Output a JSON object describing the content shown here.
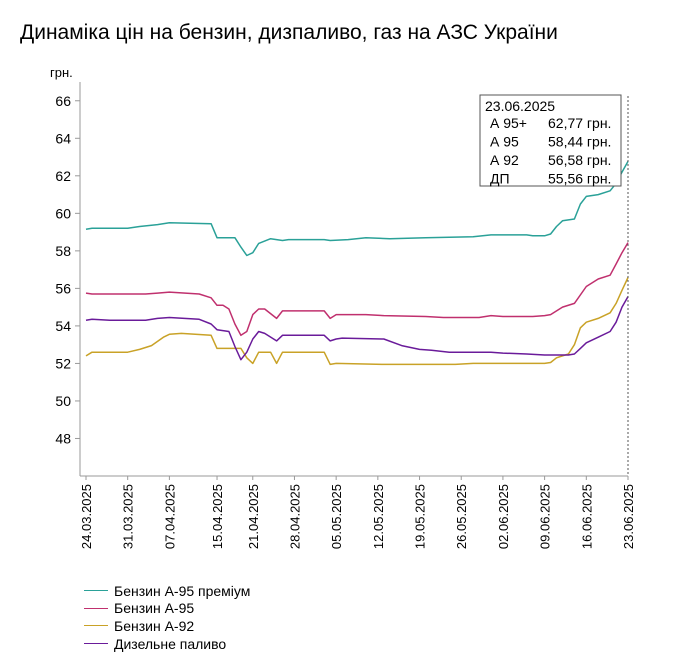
{
  "title": "Динаміка цін на бензин, дизпаливо, газ на АЗС України",
  "chart_data": {
    "type": "line",
    "title": "Динаміка цін на бензин, дизпаливо, газ на АЗС України",
    "ylabel": "грн.",
    "xlabel": "",
    "ylim": [
      46,
      67
    ],
    "yticks": [
      48,
      50,
      52,
      54,
      56,
      58,
      60,
      62,
      64,
      66
    ],
    "x_start": "24.03.2025",
    "x_end": "23.06.2025",
    "xticks": [
      "24.03.2025",
      "31.03.2025",
      "07.04.2025",
      "15.04.2025",
      "21.04.2025",
      "28.04.2025",
      "05.05.2025",
      "12.05.2025",
      "19.05.2025",
      "26.05.2025",
      "02.06.2025",
      "09.06.2025",
      "16.06.2025",
      "23.06.2025"
    ],
    "grid": false,
    "legend_position": "bottom-left",
    "series": [
      {
        "name": "Бензин А-95 преміум",
        "color": "#2aa198",
        "points": [
          [
            "24.03.2025",
            59.15
          ],
          [
            "25.03.2025",
            59.2
          ],
          [
            "31.03.2025",
            59.2
          ],
          [
            "02.04.2025",
            59.3
          ],
          [
            "05.04.2025",
            59.4
          ],
          [
            "07.04.2025",
            59.5
          ],
          [
            "14.04.2025",
            59.45
          ],
          [
            "15.04.2025",
            58.7
          ],
          [
            "18.04.2025",
            58.7
          ],
          [
            "19.04.2025",
            58.2
          ],
          [
            "20.04.2025",
            57.75
          ],
          [
            "21.04.2025",
            57.9
          ],
          [
            "22.04.2025",
            58.4
          ],
          [
            "24.04.2025",
            58.65
          ],
          [
            "26.04.2025",
            58.55
          ],
          [
            "27.04.2025",
            58.6
          ],
          [
            "03.05.2025",
            58.6
          ],
          [
            "04.05.2025",
            58.55
          ],
          [
            "07.05.2025",
            58.6
          ],
          [
            "10.05.2025",
            58.7
          ],
          [
            "14.05.2025",
            58.65
          ],
          [
            "20.05.2025",
            58.7
          ],
          [
            "28.05.2025",
            58.75
          ],
          [
            "31.05.2025",
            58.85
          ],
          [
            "06.06.2025",
            58.85
          ],
          [
            "07.06.2025",
            58.8
          ],
          [
            "09.06.2025",
            58.8
          ],
          [
            "10.06.2025",
            58.9
          ],
          [
            "11.06.2025",
            59.3
          ],
          [
            "12.06.2025",
            59.6
          ],
          [
            "14.06.2025",
            59.7
          ],
          [
            "15.06.2025",
            60.5
          ],
          [
            "16.06.2025",
            60.9
          ],
          [
            "18.06.2025",
            61.0
          ],
          [
            "20.06.2025",
            61.2
          ],
          [
            "21.06.2025",
            61.6
          ],
          [
            "22.06.2025",
            62.2
          ],
          [
            "23.06.2025",
            62.77
          ]
        ]
      },
      {
        "name": "Бензин А-95",
        "color": "#c0306e",
        "points": [
          [
            "24.03.2025",
            55.75
          ],
          [
            "25.03.2025",
            55.7
          ],
          [
            "31.03.2025",
            55.7
          ],
          [
            "03.04.2025",
            55.7
          ],
          [
            "05.04.2025",
            55.75
          ],
          [
            "07.04.2025",
            55.8
          ],
          [
            "12.04.2025",
            55.7
          ],
          [
            "14.04.2025",
            55.5
          ],
          [
            "15.04.2025",
            55.1
          ],
          [
            "16.04.2025",
            55.1
          ],
          [
            "17.04.2025",
            54.9
          ],
          [
            "18.04.2025",
            54.1
          ],
          [
            "19.04.2025",
            53.5
          ],
          [
            "20.04.2025",
            53.7
          ],
          [
            "21.04.2025",
            54.6
          ],
          [
            "22.04.2025",
            54.9
          ],
          [
            "23.04.2025",
            54.9
          ],
          [
            "25.04.2025",
            54.4
          ],
          [
            "26.04.2025",
            54.8
          ],
          [
            "27.04.2025",
            54.8
          ],
          [
            "03.05.2025",
            54.8
          ],
          [
            "04.05.2025",
            54.4
          ],
          [
            "05.05.2025",
            54.6
          ],
          [
            "06.05.2025",
            54.6
          ],
          [
            "10.05.2025",
            54.6
          ],
          [
            "13.05.2025",
            54.55
          ],
          [
            "20.05.2025",
            54.5
          ],
          [
            "23.05.2025",
            54.45
          ],
          [
            "29.05.2025",
            54.45
          ],
          [
            "31.05.2025",
            54.55
          ],
          [
            "02.06.2025",
            54.5
          ],
          [
            "07.06.2025",
            54.5
          ],
          [
            "09.06.2025",
            54.55
          ],
          [
            "10.06.2025",
            54.6
          ],
          [
            "12.06.2025",
            55.0
          ],
          [
            "14.06.2025",
            55.2
          ],
          [
            "16.06.2025",
            56.1
          ],
          [
            "18.06.2025",
            56.5
          ],
          [
            "20.06.2025",
            56.7
          ],
          [
            "21.06.2025",
            57.3
          ],
          [
            "22.06.2025",
            57.9
          ],
          [
            "23.06.2025",
            58.44
          ]
        ]
      },
      {
        "name": "Бензин А-92",
        "color": "#c9a227",
        "points": [
          [
            "24.03.2025",
            52.4
          ],
          [
            "25.03.2025",
            52.6
          ],
          [
            "26.03.2025",
            52.6
          ],
          [
            "31.03.2025",
            52.6
          ],
          [
            "02.04.2025",
            52.75
          ],
          [
            "04.04.2025",
            52.95
          ],
          [
            "06.04.2025",
            53.4
          ],
          [
            "07.04.2025",
            53.55
          ],
          [
            "09.04.2025",
            53.6
          ],
          [
            "14.04.2025",
            53.5
          ],
          [
            "15.04.2025",
            52.8
          ],
          [
            "19.04.2025",
            52.8
          ],
          [
            "20.04.2025",
            52.3
          ],
          [
            "21.04.2025",
            52.0
          ],
          [
            "22.04.2025",
            52.6
          ],
          [
            "24.04.2025",
            52.6
          ],
          [
            "25.04.2025",
            52.0
          ],
          [
            "26.04.2025",
            52.6
          ],
          [
            "03.05.2025",
            52.6
          ],
          [
            "04.05.2025",
            51.95
          ],
          [
            "05.05.2025",
            52.0
          ],
          [
            "13.05.2025",
            51.95
          ],
          [
            "20.05.2025",
            51.95
          ],
          [
            "25.05.2025",
            51.95
          ],
          [
            "28.05.2025",
            52.0
          ],
          [
            "02.06.2025",
            52.0
          ],
          [
            "07.06.2025",
            52.0
          ],
          [
            "09.06.2025",
            52.0
          ],
          [
            "10.06.2025",
            52.05
          ],
          [
            "11.06.2025",
            52.3
          ],
          [
            "13.06.2025",
            52.5
          ],
          [
            "14.06.2025",
            53.0
          ],
          [
            "15.06.2025",
            53.9
          ],
          [
            "16.06.2025",
            54.2
          ],
          [
            "18.06.2025",
            54.4
          ],
          [
            "20.06.2025",
            54.7
          ],
          [
            "21.06.2025",
            55.2
          ],
          [
            "22.06.2025",
            55.9
          ],
          [
            "23.06.2025",
            56.58
          ]
        ]
      },
      {
        "name": "Дизельне паливо",
        "color": "#6a1b9a",
        "points": [
          [
            "24.03.2025",
            54.3
          ],
          [
            "25.03.2025",
            54.35
          ],
          [
            "28.03.2025",
            54.3
          ],
          [
            "31.03.2025",
            54.3
          ],
          [
            "03.04.2025",
            54.3
          ],
          [
            "05.04.2025",
            54.4
          ],
          [
            "07.04.2025",
            54.45
          ],
          [
            "12.04.2025",
            54.35
          ],
          [
            "14.04.2025",
            54.1
          ],
          [
            "15.04.2025",
            53.8
          ],
          [
            "17.04.2025",
            53.7
          ],
          [
            "18.04.2025",
            52.9
          ],
          [
            "19.04.2025",
            52.2
          ],
          [
            "20.04.2025",
            52.6
          ],
          [
            "21.04.2025",
            53.3
          ],
          [
            "22.04.2025",
            53.7
          ],
          [
            "23.04.2025",
            53.6
          ],
          [
            "25.04.2025",
            53.2
          ],
          [
            "26.04.2025",
            53.5
          ],
          [
            "03.05.2025",
            53.5
          ],
          [
            "04.05.2025",
            53.2
          ],
          [
            "05.05.2025",
            53.3
          ],
          [
            "06.05.2025",
            53.35
          ],
          [
            "13.05.2025",
            53.3
          ],
          [
            "16.05.2025",
            52.95
          ],
          [
            "19.05.2025",
            52.75
          ],
          [
            "21.05.2025",
            52.7
          ],
          [
            "24.05.2025",
            52.6
          ],
          [
            "31.05.2025",
            52.6
          ],
          [
            "02.06.2025",
            52.55
          ],
          [
            "06.06.2025",
            52.5
          ],
          [
            "09.06.2025",
            52.45
          ],
          [
            "13.06.2025",
            52.45
          ],
          [
            "14.06.2025",
            52.5
          ],
          [
            "15.06.2025",
            52.8
          ],
          [
            "16.06.2025",
            53.1
          ],
          [
            "18.06.2025",
            53.4
          ],
          [
            "20.06.2025",
            53.7
          ],
          [
            "21.06.2025",
            54.2
          ],
          [
            "22.06.2025",
            55.0
          ],
          [
            "23.06.2025",
            55.56
          ]
        ]
      }
    ],
    "tooltip": {
      "date": "23.06.2025",
      "rows": [
        {
          "label": "А 95+",
          "value": "62,77 грн."
        },
        {
          "label": "А 95",
          "value": "58,44 грн."
        },
        {
          "label": "А 92",
          "value": "56,58 грн."
        },
        {
          "label": "ДП",
          "value": "55,56 грн."
        }
      ]
    }
  }
}
